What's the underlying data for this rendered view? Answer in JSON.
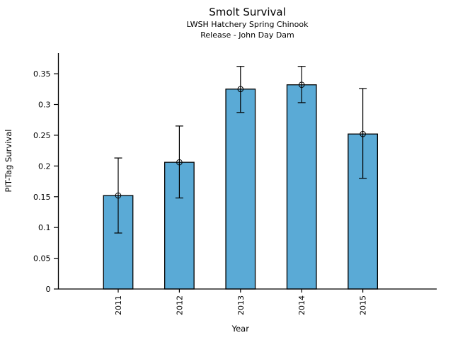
{
  "chart_data": {
    "type": "bar",
    "title": "Smolt Survival",
    "subtitle1": "LWSH Hatchery Spring Chinook",
    "subtitle2": "Release - John Day Dam",
    "xlabel": "Year",
    "ylabel": "PIT-Tag Survival",
    "categories": [
      "2011",
      "2012",
      "2013",
      "2014",
      "2015"
    ],
    "values": [
      0.152,
      0.206,
      0.325,
      0.332,
      0.252
    ],
    "error_low": [
      0.091,
      0.148,
      0.287,
      0.303,
      0.18
    ],
    "error_high": [
      0.213,
      0.265,
      0.362,
      0.362,
      0.326
    ],
    "yticks": [
      0,
      0.05,
      0.1,
      0.15,
      0.2,
      0.25,
      0.3,
      0.35
    ],
    "ytick_labels": [
      "0",
      "0.05",
      "0.1",
      "0.15",
      "0.2",
      "0.25",
      "0.3",
      "0.35"
    ],
    "ylim": [
      0,
      0.3835
    ],
    "xtick_rotation": 90,
    "grid": false,
    "legend": null,
    "bar_color": "#5AAAD6",
    "bar_edge_color": "#000000",
    "error_color": "#000000",
    "marker": "open-circle",
    "text_color": "#000000",
    "background_color": "#ffffff"
  }
}
